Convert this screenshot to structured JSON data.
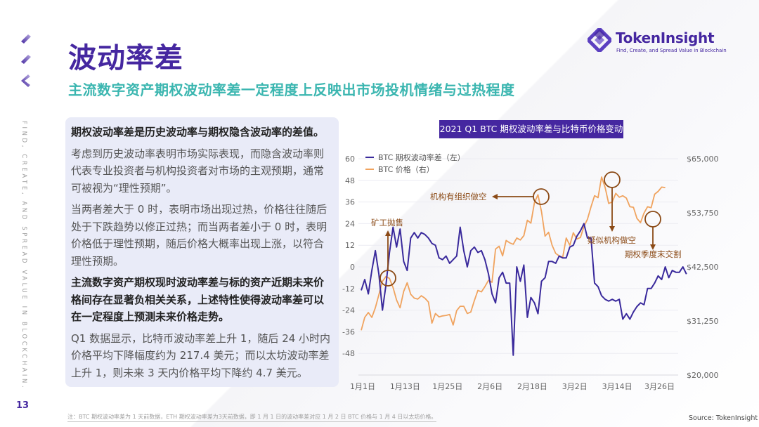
{
  "header": {
    "title": "波动率差",
    "subtitle": "主流数字资产期权波动率差一定程度上反映出市场投机情绪与过热程度"
  },
  "logo": {
    "name": "TokenInsight",
    "tagline": "Find, Create, and Spread Value in Blockchain",
    "icon": "tokeninsight-logo-icon"
  },
  "sidebar": {
    "vertical_text": "FIND, CREATE, AND SPREAD VALUE IN BLOCKCHAIN.",
    "page_number": "13"
  },
  "textbox": {
    "paragraphs": [
      {
        "text": "期权波动率差是历史波动率与期权隐含波动率的差值。",
        "bold": true
      },
      {
        "text": "考虑到历史波动率表明市场实际表现，而隐含波动率则代表专业投资者与机构投资者对市场的主观预期，通常可被视为“理性预期”。",
        "bold": false
      },
      {
        "text": "当两者差大于 0 时，表明市场出现过热，价格往往随后处于下跌趋势以修正过热；而当两者差小于 0 时，表明价格低于理性预期，随后价格大概率出现上涨，以符合理性预期。",
        "bold": false
      },
      {
        "text": "主流数字资产期权现时波动率差与标的资产近期未来价格间存在显著负相关关系，上述特性使得波动率差可以在一定程度上预测未来价格走势。",
        "bold": true
      },
      {
        "text": "Q1 数据显示，比特币波动率差上升 1，随后 24 小时内价格平均下降幅度约为 217.4 美元；而以太坊波动率差上升 1，则未来 3 天内价格平均下降约 4.7 美元。",
        "bold": false
      }
    ]
  },
  "footer": {
    "note": "注：BTC 期权波动率差为 1 天前数据，ETH 期权波动率差为3天前数据，即 1 月 1 日的波动率差对应 1 月 2 日 BTC 价格与 1 月 4 日以太坊价格。",
    "source": "Source: TokenInsight"
  },
  "colors": {
    "brand_purple": "#4527a0",
    "teal": "#3bb6b0",
    "btc_vol_line": "#3a2a9c",
    "btc_price_line": "#f0a35e",
    "annotation": "#8b4a16",
    "textbox_bg": "#e9ebf8"
  },
  "chart_data": {
    "type": "line",
    "title": "2021 Q1 BTC 期权波动率差与比特币价格变动",
    "xlabel": "",
    "ylabel_left": "",
    "ylabel_right": "",
    "x_ticks": [
      "1月1日",
      "1月13日",
      "1月25日",
      "2月6日",
      "2月18日",
      "3月2日",
      "3月14日",
      "3月26日"
    ],
    "y_left_ticks": [
      "60",
      "48",
      "36",
      "24",
      "12",
      "0",
      "-12",
      "-24",
      "-36",
      "-48"
    ],
    "y_right_ticks": [
      "$65,000",
      "$53,750",
      "$42,500",
      "$31,250",
      "$20,000"
    ],
    "ylim_left": [
      -60,
      60
    ],
    "ylim_right": [
      20000,
      65000
    ],
    "grid": true,
    "legend_position": "top-left",
    "legend": [
      "BTC 期权波动率差（左）",
      "BTC 价格（右）"
    ],
    "series": [
      {
        "name": "BTC 期权波动率差（左）",
        "axis": "left",
        "day_start": 1,
        "values": [
          -13,
          -7,
          -15,
          -2,
          9,
          -4,
          -24,
          -10,
          8,
          22,
          11,
          21,
          3,
          -2,
          16,
          19,
          16,
          19,
          18,
          16,
          13,
          12,
          5,
          4,
          6,
          2,
          4,
          6,
          22,
          9,
          0,
          9,
          11,
          8,
          9,
          4,
          -4,
          -15,
          -20,
          -6,
          -3,
          -9,
          -9,
          -49,
          0,
          -8,
          1,
          -28,
          -17,
          -20,
          -26,
          -8,
          -6,
          3,
          3,
          2,
          6,
          5,
          5,
          11,
          12,
          17,
          20,
          24,
          16,
          16,
          -9,
          -11,
          -16,
          -18,
          -19,
          -18,
          -19,
          -18,
          -29,
          -26,
          -29,
          -25,
          -22,
          -20,
          -21,
          -12,
          -12,
          -9,
          -5,
          -7,
          0,
          -6,
          -2,
          -3,
          -3,
          0,
          -4
        ]
      },
      {
        "name": "BTC 价格（右）",
        "axis": "right",
        "day_start": 1,
        "values": [
          29300,
          32000,
          33000,
          32000,
          34000,
          36700,
          39500,
          40500,
          40100,
          38200,
          35600,
          34000,
          37400,
          39200,
          36800,
          36000,
          35800,
          36500,
          36000,
          35200,
          30800,
          32800,
          32100,
          32300,
          32400,
          32600,
          30400,
          33400,
          34300,
          34300,
          32800,
          33100,
          35500,
          37600,
          37300,
          38400,
          39700,
          39300,
          46200,
          46800,
          44800,
          48000,
          47500,
          47200,
          48500,
          48100,
          49000,
          52200,
          51600,
          55900,
          57500,
          54000,
          48900,
          49700,
          47000,
          45300,
          44800,
          44500,
          48500,
          47000,
          49600,
          48300,
          48600,
          50900,
          52400,
          55000,
          57300,
          56900,
          61200,
          59000,
          55700,
          56000,
          57800,
          57000,
          57300,
          56800,
          55000,
          54900,
          52600,
          51700,
          53700,
          55000,
          54800,
          57600,
          58200,
          59100,
          59000
        ]
      }
    ],
    "annotations": [
      {
        "label": "矿工抛售",
        "near": "1月7日",
        "arrow": "up"
      },
      {
        "label": "机构有组织做空",
        "near": "2月21日",
        "arrow": "left"
      },
      {
        "label": "疑似机构做空",
        "near": "3月13日",
        "arrow": "down"
      },
      {
        "label": "期权季度末交割",
        "near": "3月25日",
        "arrow": "down"
      }
    ]
  }
}
